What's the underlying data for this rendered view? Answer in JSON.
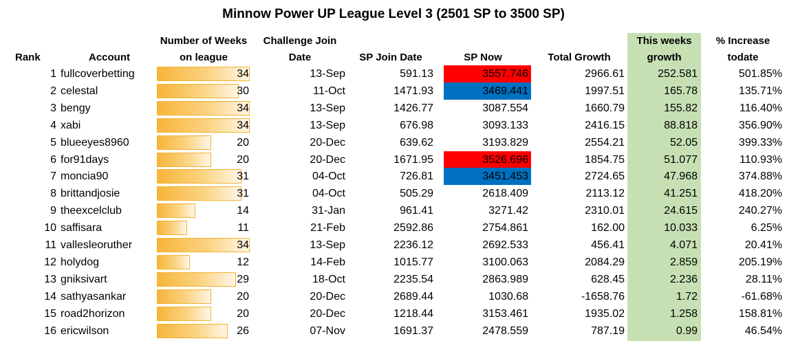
{
  "title": "Minnow Power UP League Level 3 (2501 SP to 3500 SP)",
  "headers": {
    "rank": "Rank",
    "account": "Account",
    "weeks_line1": "Number of Weeks",
    "weeks_line2": "on league",
    "join_line1": "Challenge Join",
    "join_line2": "Date",
    "sp_join": "SP Join Date",
    "sp_now": "SP Now",
    "total_growth": "Total Growth",
    "week_growth_line1": "This weeks",
    "week_growth_line2": "growth",
    "increase_line1": "% Increase",
    "increase_line2": "todate"
  },
  "colors": {
    "growth_column": "#c6e0b4",
    "highlight_red": "#ff0000",
    "highlight_blue": "#0070c0",
    "bar_fill": "#f7b53a"
  },
  "weeks_max": 34,
  "rows": [
    {
      "rank": "1",
      "account": "fullcoverbetting",
      "weeks": "34",
      "join_date": "13-Sep",
      "sp_join": "591.13",
      "sp_now": "3557.746",
      "sp_now_highlight": "red",
      "total_growth": "2966.61",
      "week_growth": "252.581",
      "increase": "501.85%"
    },
    {
      "rank": "2",
      "account": "celestal",
      "weeks": "30",
      "join_date": "11-Oct",
      "sp_join": "1471.93",
      "sp_now": "3469.441",
      "sp_now_highlight": "blue",
      "total_growth": "1997.51",
      "week_growth": "165.78",
      "increase": "135.71%"
    },
    {
      "rank": "3",
      "account": "bengy",
      "weeks": "34",
      "join_date": "13-Sep",
      "sp_join": "1426.77",
      "sp_now": "3087.554",
      "sp_now_highlight": "",
      "total_growth": "1660.79",
      "week_growth": "155.82",
      "increase": "116.40%"
    },
    {
      "rank": "4",
      "account": "xabi",
      "weeks": "34",
      "join_date": "13-Sep",
      "sp_join": "676.98",
      "sp_now": "3093.133",
      "sp_now_highlight": "",
      "total_growth": "2416.15",
      "week_growth": "88.818",
      "increase": "356.90%"
    },
    {
      "rank": "5",
      "account": "blueeyes8960",
      "weeks": "20",
      "join_date": "20-Dec",
      "sp_join": "639.62",
      "sp_now": "3193.829",
      "sp_now_highlight": "",
      "total_growth": "2554.21",
      "week_growth": "52.05",
      "increase": "399.33%"
    },
    {
      "rank": "6",
      "account": "for91days",
      "weeks": "20",
      "join_date": "20-Dec",
      "sp_join": "1671.95",
      "sp_now": "3526.696",
      "sp_now_highlight": "red",
      "total_growth": "1854.75",
      "week_growth": "51.077",
      "increase": "110.93%"
    },
    {
      "rank": "7",
      "account": "moncia90",
      "weeks": "31",
      "join_date": "04-Oct",
      "sp_join": "726.81",
      "sp_now": "3451.453",
      "sp_now_highlight": "blue",
      "total_growth": "2724.65",
      "week_growth": "47.968",
      "increase": "374.88%"
    },
    {
      "rank": "8",
      "account": "brittandjosie",
      "weeks": "31",
      "join_date": "04-Oct",
      "sp_join": "505.29",
      "sp_now": "2618.409",
      "sp_now_highlight": "",
      "total_growth": "2113.12",
      "week_growth": "41.251",
      "increase": "418.20%"
    },
    {
      "rank": "9",
      "account": "theexcelclub",
      "weeks": "14",
      "join_date": "31-Jan",
      "sp_join": "961.41",
      "sp_now": "3271.42",
      "sp_now_highlight": "",
      "total_growth": "2310.01",
      "week_growth": "24.615",
      "increase": "240.27%"
    },
    {
      "rank": "10",
      "account": "saffisara",
      "weeks": "11",
      "join_date": "21-Feb",
      "sp_join": "2592.86",
      "sp_now": "2754.861",
      "sp_now_highlight": "",
      "total_growth": "162.00",
      "week_growth": "10.033",
      "increase": "6.25%"
    },
    {
      "rank": "11",
      "account": "vallesleoruther",
      "weeks": "34",
      "join_date": "13-Sep",
      "sp_join": "2236.12",
      "sp_now": "2692.533",
      "sp_now_highlight": "",
      "total_growth": "456.41",
      "week_growth": "4.071",
      "increase": "20.41%"
    },
    {
      "rank": "12",
      "account": "holydog",
      "weeks": "12",
      "join_date": "14-Feb",
      "sp_join": "1015.77",
      "sp_now": "3100.063",
      "sp_now_highlight": "",
      "total_growth": "2084.29",
      "week_growth": "2.859",
      "increase": "205.19%"
    },
    {
      "rank": "13",
      "account": "gniksivart",
      "weeks": "29",
      "join_date": "18-Oct",
      "sp_join": "2235.54",
      "sp_now": "2863.989",
      "sp_now_highlight": "",
      "total_growth": "628.45",
      "week_growth": "2.236",
      "increase": "28.11%"
    },
    {
      "rank": "14",
      "account": "sathyasankar",
      "weeks": "20",
      "join_date": "20-Dec",
      "sp_join": "2689.44",
      "sp_now": "1030.68",
      "sp_now_highlight": "",
      "total_growth": "-1658.76",
      "week_growth": "1.72",
      "increase": "-61.68%"
    },
    {
      "rank": "15",
      "account": "road2horizon",
      "weeks": "20",
      "join_date": "20-Dec",
      "sp_join": "1218.44",
      "sp_now": "3153.461",
      "sp_now_highlight": "",
      "total_growth": "1935.02",
      "week_growth": "1.258",
      "increase": "158.81%"
    },
    {
      "rank": "16",
      "account": "ericwilson",
      "weeks": "26",
      "join_date": "07-Nov",
      "sp_join": "1691.37",
      "sp_now": "2478.559",
      "sp_now_highlight": "",
      "total_growth": "787.19",
      "week_growth": "0.99",
      "increase": "46.54%"
    }
  ]
}
